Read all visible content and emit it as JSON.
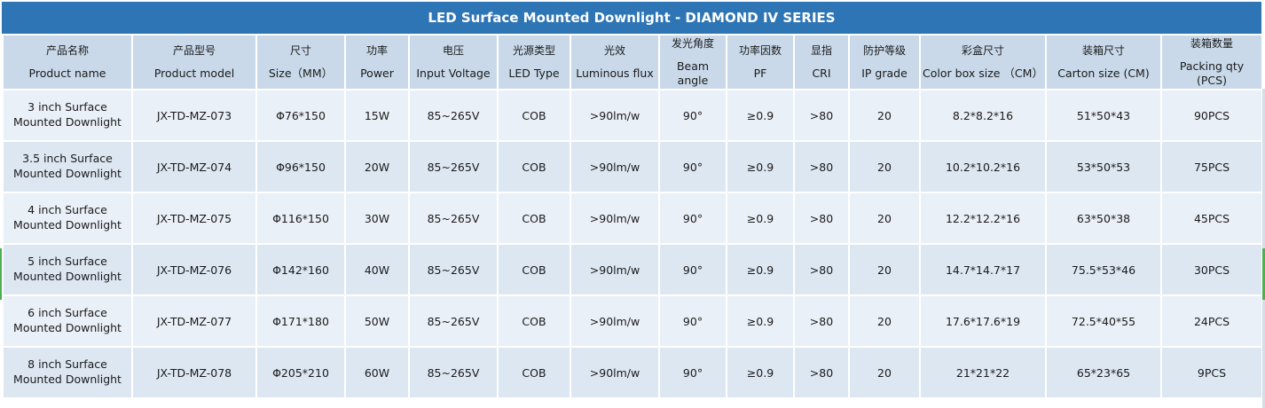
{
  "title": "LED Surface Mounted Downlight - DIAMOND IV SERIES",
  "columns": [
    {
      "zh": "产品名称",
      "en": "Product name"
    },
    {
      "zh": "产品型号",
      "en": "Product model"
    },
    {
      "zh": "尺寸",
      "en": "Size（MM）"
    },
    {
      "zh": "功率",
      "en": "Power"
    },
    {
      "zh": "电压",
      "en": "Input Voltage"
    },
    {
      "zh": "光源类型",
      "en": "LED Type"
    },
    {
      "zh": "光效",
      "en": "Luminous flux"
    },
    {
      "zh": "发光角度",
      "en": "Beam angle"
    },
    {
      "zh": "功率因数",
      "en": "PF"
    },
    {
      "zh": "显指",
      "en": "CRI"
    },
    {
      "zh": "防护等级",
      "en": "IP grade"
    },
    {
      "zh": "彩盒尺寸",
      "en": "Color box size （CM）"
    },
    {
      "zh": "装箱尺寸",
      "en": "Carton size (CM)"
    },
    {
      "zh": "装箱数量",
      "en": "Packing qty (PCS)"
    }
  ],
  "rows": [
    {
      "name": "3 inch Surface Mounted Downlight",
      "model": "JX-TD-MZ-073",
      "size": "Φ76*150",
      "power": "15W",
      "voltage": "85~265V",
      "led_type": "COB",
      "flux": ">90lm/w",
      "beam": "90°",
      "pf": "≥0.9",
      "cri": ">80",
      "ip": "20",
      "box": "8.2*8.2*16",
      "carton": "51*50*43",
      "qty": "90PCS"
    },
    {
      "name": "3.5 inch Surface Mounted Downlight",
      "model": "JX-TD-MZ-074",
      "size": "Φ96*150",
      "power": "20W",
      "voltage": "85~265V",
      "led_type": "COB",
      "flux": ">90lm/w",
      "beam": "90°",
      "pf": "≥0.9",
      "cri": ">80",
      "ip": "20",
      "box": "10.2*10.2*16",
      "carton": "53*50*53",
      "qty": "75PCS"
    },
    {
      "name": "4 inch Surface Mounted Downlight",
      "model": "JX-TD-MZ-075",
      "size": "Φ116*150",
      "power": "30W",
      "voltage": "85~265V",
      "led_type": "COB",
      "flux": ">90lm/w",
      "beam": "90°",
      "pf": "≥0.9",
      "cri": ">80",
      "ip": "20",
      "box": "12.2*12.2*16",
      "carton": "63*50*38",
      "qty": "45PCS"
    },
    {
      "name": "5 inch Surface Mounted Downlight",
      "model": "JX-TD-MZ-076",
      "size": "Φ142*160",
      "power": "40W",
      "voltage": "85~265V",
      "led_type": "COB",
      "flux": ">90lm/w",
      "beam": "90°",
      "pf": "≥0.9",
      "cri": ">80",
      "ip": "20",
      "box": "14.7*14.7*17",
      "carton": "75.5*53*46",
      "qty": "30PCS"
    },
    {
      "name": "6 inch Surface Mounted Downlight",
      "model": "JX-TD-MZ-077",
      "size": "Φ171*180",
      "power": "50W",
      "voltage": "85~265V",
      "led_type": "COB",
      "flux": ">90lm/w",
      "beam": "90°",
      "pf": "≥0.9",
      "cri": ">80",
      "ip": "20",
      "box": "17.6*17.6*19",
      "carton": "72.5*40*55",
      "qty": "24PCS"
    },
    {
      "name": "8 inch Surface Mounted Downlight",
      "model": "JX-TD-MZ-078",
      "size": "Φ205*210",
      "power": "60W",
      "voltage": "85~265V",
      "led_type": "COB",
      "flux": ">90lm/w",
      "beam": "90°",
      "pf": "≥0.9",
      "cri": ">80",
      "ip": "20",
      "box": "21*21*22",
      "carton": "65*23*65",
      "qty": "9PCS"
    }
  ]
}
